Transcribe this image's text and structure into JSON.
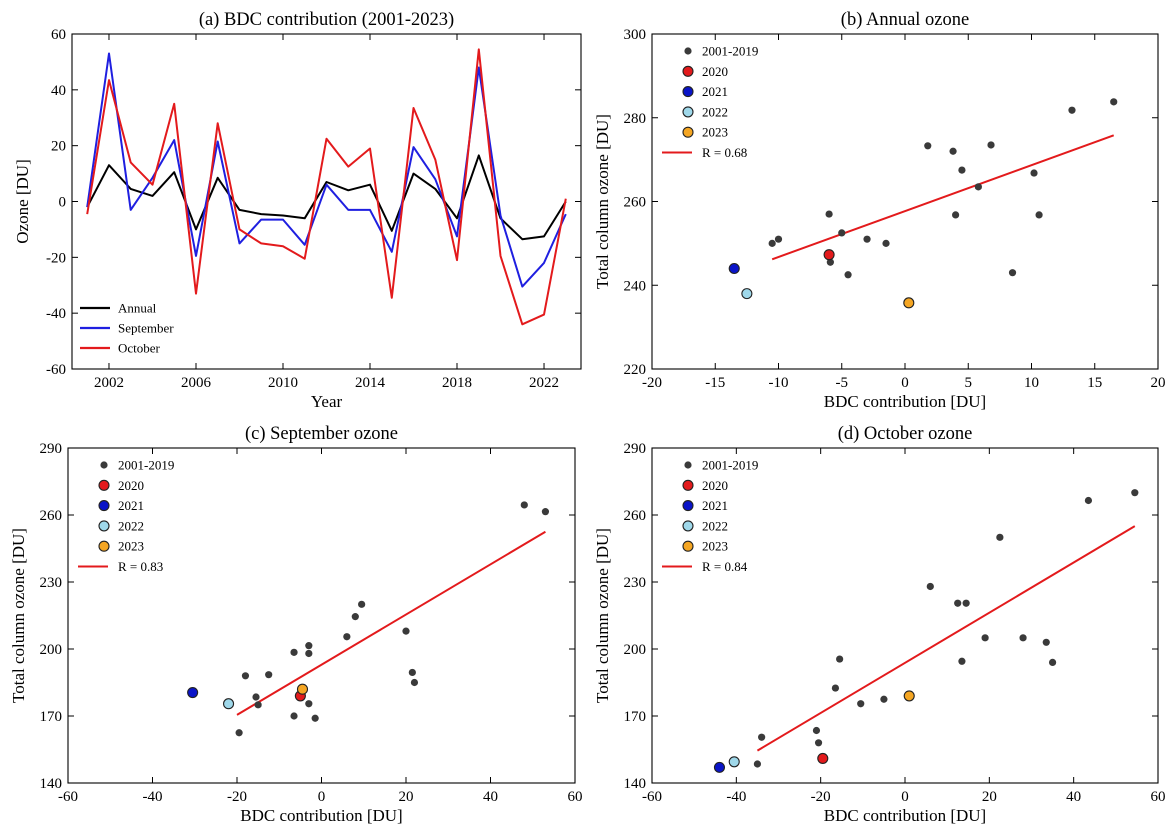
{
  "colors": {
    "annual": "#000000",
    "september": "#1f1fe0",
    "october": "#e31a1c",
    "y2001_2019": "#3a3a3a",
    "y2020": "#e31a1c",
    "y2021": "#0a14c8",
    "y2022": "#9fd8ea",
    "y2023": "#f5a623",
    "fit": "#e31a1c"
  },
  "chart_data": [
    {
      "type": "line",
      "title": "(a) BDC contribution (2001-2023)",
      "xlabel": "Year",
      "ylabel": "Ozone [DU]",
      "xlim": [
        2000.3,
        2023.7
      ],
      "ylim": [
        -60,
        60
      ],
      "xticks": [
        2002,
        2006,
        2010,
        2014,
        2018,
        2022
      ],
      "yticks": [
        -60,
        -40,
        -20,
        0,
        20,
        40,
        60
      ],
      "legend": "lower-left",
      "x": [
        2001,
        2002,
        2003,
        2004,
        2005,
        2006,
        2007,
        2008,
        2009,
        2010,
        2011,
        2012,
        2013,
        2014,
        2015,
        2016,
        2017,
        2018,
        2019,
        2020,
        2021,
        2022,
        2023
      ],
      "series": [
        {
          "name": "Annual",
          "color": "annual",
          "values": [
            -2,
            13,
            4.5,
            2,
            10.5,
            -10,
            8.5,
            -3,
            -4.5,
            -5,
            -6,
            7,
            4,
            6,
            -10.5,
            10,
            4.5,
            -6,
            16.5,
            -6,
            -13.5,
            -12.5,
            0
          ]
        },
        {
          "name": "September",
          "color": "september",
          "values": [
            -2,
            53,
            -3,
            8.5,
            22,
            -19.5,
            21.5,
            -15,
            -6.5,
            -6.5,
            -15.5,
            6,
            -3,
            -3,
            -18,
            19.5,
            8,
            -12.5,
            48,
            -5,
            -30.5,
            -22,
            -4.5
          ]
        },
        {
          "name": "October",
          "color": "october",
          "values": [
            -4.5,
            43.5,
            14,
            6,
            35,
            -33,
            28,
            -10,
            -15,
            -16,
            -20.5,
            22.5,
            12.5,
            19,
            -34.5,
            33.5,
            15,
            -21,
            54.5,
            -19.5,
            -44,
            -40.5,
            1
          ]
        }
      ]
    },
    {
      "type": "scatter",
      "title": "(b) Annual ozone",
      "xlabel": "BDC contribution [DU]",
      "ylabel": "Total column ozone [DU]",
      "xlim": [
        -20,
        20
      ],
      "ylim": [
        220,
        300
      ],
      "xticks": [
        -20,
        -15,
        -10,
        -5,
        0,
        5,
        10,
        15,
        20
      ],
      "yticks": [
        220,
        240,
        260,
        280,
        300
      ],
      "legend": "upper-left",
      "points_2001_2019": [
        [
          -10.5,
          250
        ],
        [
          -10,
          251
        ],
        [
          -6,
          257
        ],
        [
          -5.9,
          245.5
        ],
        [
          -5,
          252.5
        ],
        [
          -4.5,
          242.5
        ],
        [
          -3,
          251
        ],
        [
          -1.5,
          250
        ],
        [
          1.8,
          273.3
        ],
        [
          3.8,
          272
        ],
        [
          4,
          256.8
        ],
        [
          4.5,
          267.5
        ],
        [
          5.8,
          263.5
        ],
        [
          6.8,
          273.5
        ],
        [
          8.5,
          243
        ],
        [
          10.2,
          266.8
        ],
        [
          10.6,
          256.8
        ],
        [
          13.2,
          281.8
        ],
        [
          16.5,
          283.8
        ]
      ],
      "highlight": [
        {
          "name": "2020",
          "color": "y2020",
          "x": -6,
          "y": 247.3
        },
        {
          "name": "2021",
          "color": "y2021",
          "x": -13.5,
          "y": 244
        },
        {
          "name": "2022",
          "color": "y2022",
          "x": -12.5,
          "y": 238
        },
        {
          "name": "2023",
          "color": "y2023",
          "x": 0.3,
          "y": 235.8
        }
      ],
      "legend_points": "2001-2019",
      "fit": {
        "label": "R = 0.68",
        "x": [
          -10.5,
          16.5
        ],
        "y": [
          246.2,
          275.8
        ]
      }
    },
    {
      "type": "scatter",
      "title": "(c) September ozone",
      "xlabel": "BDC contribution [DU]",
      "ylabel": "Total column ozone [DU]",
      "xlim": [
        -60,
        60
      ],
      "ylim": [
        140,
        290
      ],
      "xticks": [
        -60,
        -40,
        -20,
        0,
        20,
        40,
        60
      ],
      "yticks": [
        140,
        170,
        200,
        230,
        260,
        290
      ],
      "legend": "upper-left",
      "points_2001_2019": [
        [
          -19.5,
          162.5
        ],
        [
          -18,
          188
        ],
        [
          -15.5,
          178.5
        ],
        [
          -15,
          175
        ],
        [
          -12.5,
          188.5
        ],
        [
          -6.5,
          198.5
        ],
        [
          -6.5,
          170
        ],
        [
          -3,
          175.5
        ],
        [
          -3,
          201.5
        ],
        [
          -3,
          198
        ],
        [
          -1.5,
          169
        ],
        [
          6,
          205.5
        ],
        [
          8,
          214.5
        ],
        [
          9.5,
          220
        ],
        [
          20,
          208
        ],
        [
          21.5,
          189.5
        ],
        [
          22,
          185
        ],
        [
          48,
          264.5
        ],
        [
          53,
          261.5
        ]
      ],
      "highlight": [
        {
          "name": "2020",
          "color": "y2020",
          "x": -5,
          "y": 179
        },
        {
          "name": "2021",
          "color": "y2021",
          "x": -30.5,
          "y": 180.5
        },
        {
          "name": "2022",
          "color": "y2022",
          "x": -22,
          "y": 175.5
        },
        {
          "name": "2023",
          "color": "y2023",
          "x": -4.5,
          "y": 182
        }
      ],
      "legend_points": "2001-2019",
      "fit": {
        "label": "R = 0.83",
        "x": [
          -20,
          53
        ],
        "y": [
          170.5,
          252.5
        ]
      }
    },
    {
      "type": "scatter",
      "title": "(d) October ozone",
      "xlabel": "BDC contribution [DU]",
      "ylabel": "Total column ozone [DU]",
      "xlim": [
        -60,
        60
      ],
      "ylim": [
        140,
        290
      ],
      "xticks": [
        -60,
        -40,
        -20,
        0,
        20,
        40,
        60
      ],
      "yticks": [
        140,
        170,
        200,
        230,
        260,
        290
      ],
      "legend": "upper-left",
      "points_2001_2019": [
        [
          -35,
          148.5
        ],
        [
          -34,
          160.5
        ],
        [
          -21,
          163.5
        ],
        [
          -20.5,
          158
        ],
        [
          -16.5,
          182.5
        ],
        [
          -15.5,
          195.5
        ],
        [
          -10.5,
          175.5
        ],
        [
          -5,
          177.5
        ],
        [
          6,
          228
        ],
        [
          12.5,
          220.5
        ],
        [
          13.5,
          194.5
        ],
        [
          14.5,
          220.5
        ],
        [
          19,
          205
        ],
        [
          22.5,
          250
        ],
        [
          28,
          205
        ],
        [
          33.5,
          203
        ],
        [
          35,
          194
        ],
        [
          43.5,
          266.5
        ],
        [
          54.5,
          270
        ]
      ],
      "highlight": [
        {
          "name": "2020",
          "color": "y2020",
          "x": -19.5,
          "y": 151
        },
        {
          "name": "2021",
          "color": "y2021",
          "x": -44,
          "y": 147
        },
        {
          "name": "2022",
          "color": "y2022",
          "x": -40.5,
          "y": 149.5
        },
        {
          "name": "2023",
          "color": "y2023",
          "x": 1,
          "y": 179
        }
      ],
      "legend_points": "2001-2019",
      "fit": {
        "label": "R = 0.84",
        "x": [
          -35,
          54.5
        ],
        "y": [
          154.5,
          255
        ]
      }
    }
  ]
}
